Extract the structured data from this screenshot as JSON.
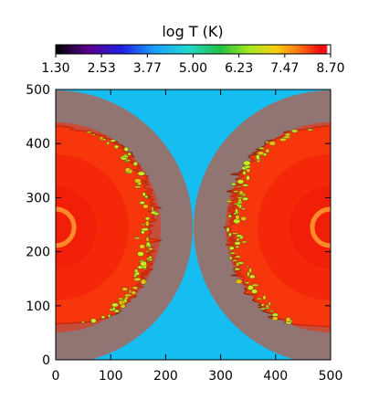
{
  "chart_data": {
    "type": "heatmap",
    "title": "log T (K)",
    "colorbar": {
      "min": 1.3,
      "max": 8.7,
      "tick_labels": [
        "1.30",
        "2.53",
        "3.77",
        "5.00",
        "6.23",
        "7.47",
        "8.70"
      ]
    },
    "x_axis": {
      "range": [
        0,
        500
      ],
      "ticks": [
        0,
        100,
        200,
        300,
        400,
        500
      ],
      "label": ""
    },
    "y_axis": {
      "range": [
        0,
        500
      ],
      "ticks": [
        0,
        100,
        200,
        300,
        400,
        500
      ],
      "label": ""
    },
    "field_description_values": {
      "background_logT": 5.0,
      "hot_lobe_core_logT": 8.5,
      "hot_lobe_edge_logT": 7.8,
      "mixing_filament_logT": 6.2
    },
    "hot_regions": [
      {
        "side": "left",
        "center_x": 0,
        "center_y": 245,
        "front_x": 175,
        "top_y": 430,
        "bottom_y": 70
      },
      {
        "side": "right",
        "center_x": 500,
        "center_y": 245,
        "front_x": 320,
        "top_y": 430,
        "bottom_y": 65
      }
    ],
    "colors": {
      "background": "#15bdf0",
      "core": "#f21e08",
      "edge": "#ff5a10",
      "filament": "#d3e822",
      "filament_alt": "#f7b90f",
      "inner_ring": "#ff8a2a",
      "boundary": "#1a1a1a"
    }
  }
}
